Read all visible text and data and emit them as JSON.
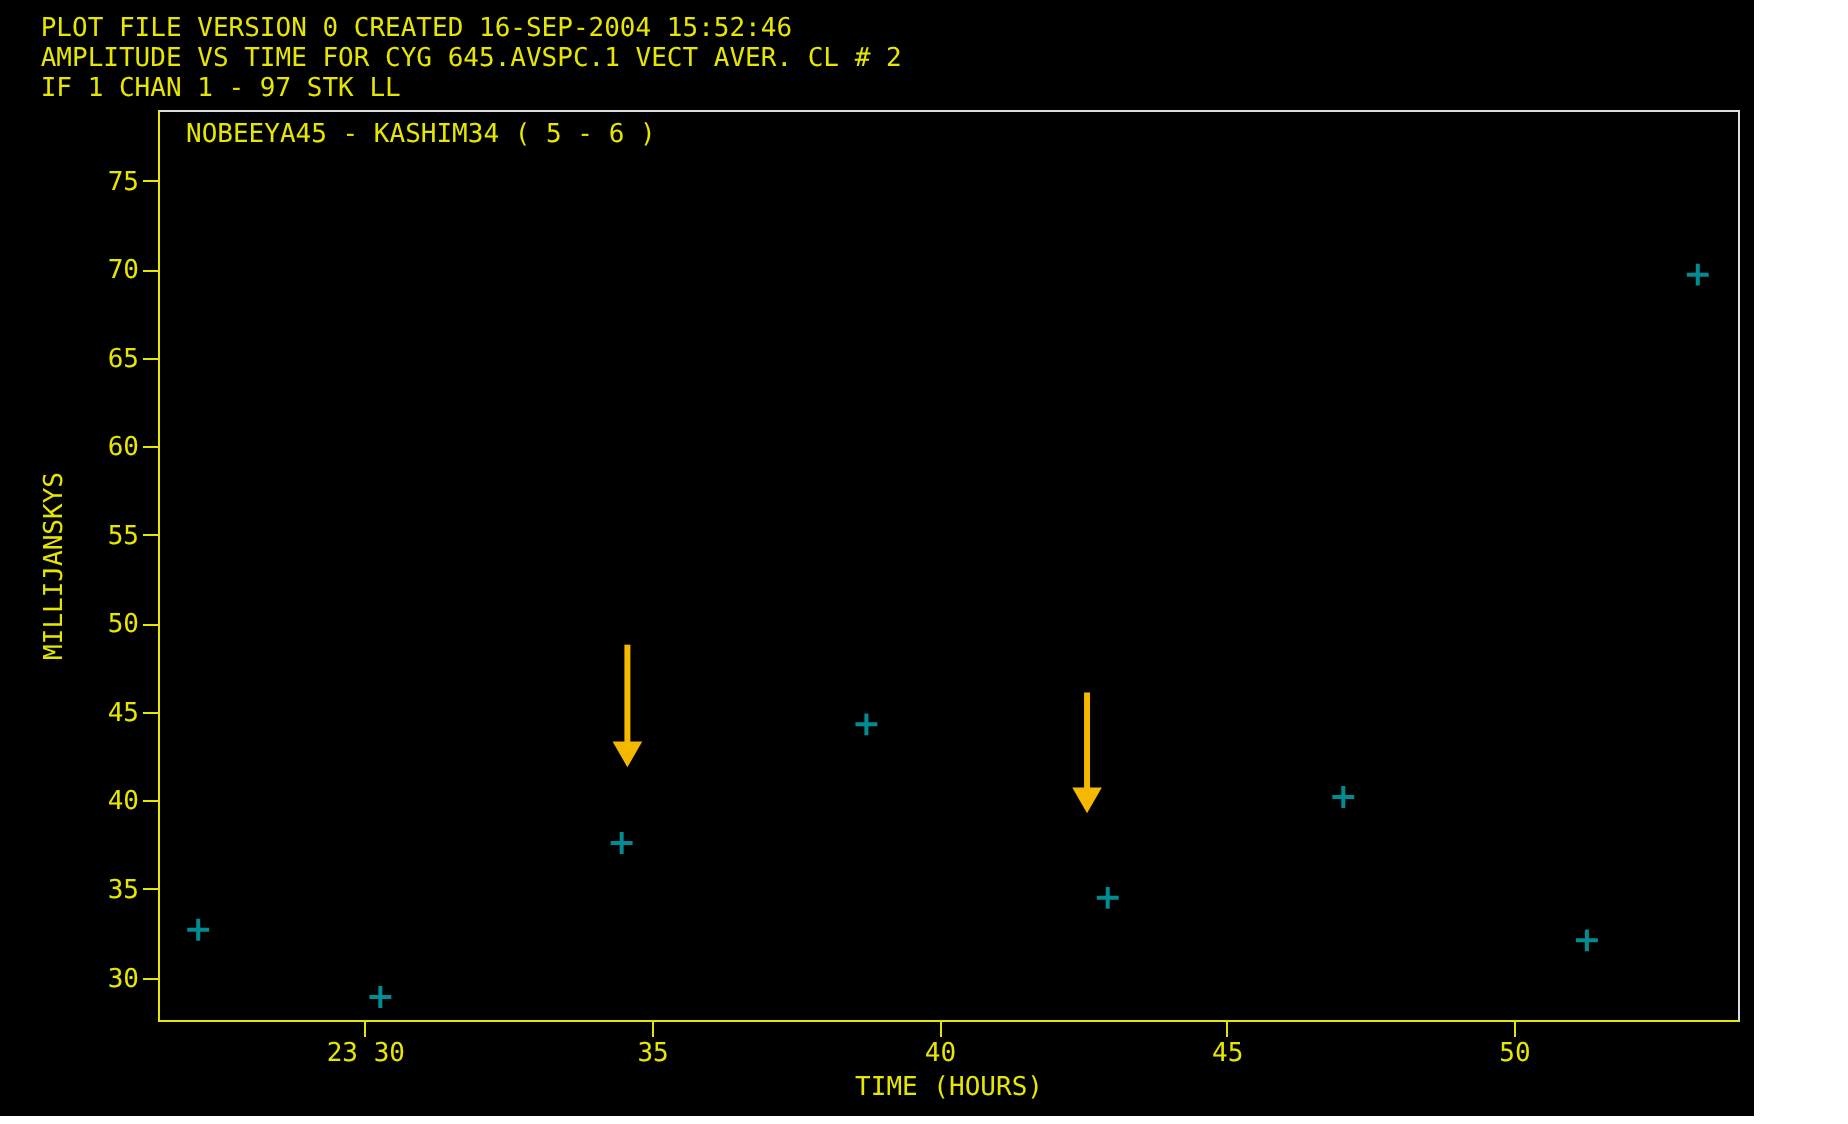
{
  "chart_data": {
    "type": "scatter",
    "title": [
      "PLOT FILE VERSION 0  CREATED 16-SEP-2004 15:52:46",
      "AMPLITUDE VS TIME  FOR  CYG 645.AVSPC.1  VECT AVER.  CL # 2",
      "IF 1   CHAN 1 - 97   STK LL"
    ],
    "annotations": [
      "NOBEEYA45 - KASHIM34 ( 5 - 6 )"
    ],
    "xlabel": "TIME (HOURS)",
    "ylabel": "MILLIJANSKYS",
    "x": [
      27.1,
      30.27,
      34.47,
      38.73,
      42.93,
      47.03,
      51.27,
      53.2
    ],
    "series": [
      {
        "color": "#00c8d0",
        "values": [
          32.7,
          28.9,
          37.6,
          44.3,
          34.5,
          40.2,
          32.1,
          69.7
        ]
      }
    ],
    "xlim": [
      26.4,
      53.9
    ],
    "ylim": [
      27.6,
      79
    ],
    "xticks": [
      {
        "value": 30,
        "label": "23 30"
      },
      35,
      40,
      45,
      50
    ],
    "yticks": [
      30,
      35,
      40,
      45,
      50,
      55,
      60,
      65,
      70,
      75
    ],
    "marker": "cross",
    "grid": false,
    "legend": false
  }
}
